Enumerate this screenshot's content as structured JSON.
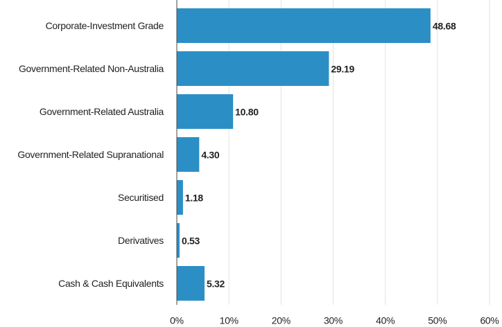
{
  "chart_data": {
    "type": "hbar",
    "categories": [
      "Corporate-Investment Grade",
      "Government-Related Non-Australia",
      "Government-Related Australia",
      "Government-Related Supranational",
      "Securitised",
      "Derivatives",
      "Cash & Cash Equivalents"
    ],
    "values": [
      48.68,
      29.19,
      10.8,
      4.3,
      1.18,
      0.53,
      5.32
    ],
    "value_labels": [
      "48.68",
      "29.19",
      "10.80",
      "4.30",
      "1.18",
      "0.53",
      "5.32"
    ],
    "color": "#2b8fc6",
    "xlim": [
      0,
      60
    ],
    "xticks": [
      {
        "value": 0,
        "label": "0%"
      },
      {
        "value": 10,
        "label": "10%"
      },
      {
        "value": 20,
        "label": "20%"
      },
      {
        "value": 30,
        "label": "30%"
      },
      {
        "value": 40,
        "label": "40%"
      },
      {
        "value": 50,
        "label": "50%"
      },
      {
        "value": 60,
        "label": "60%"
      }
    ],
    "grid": true
  }
}
